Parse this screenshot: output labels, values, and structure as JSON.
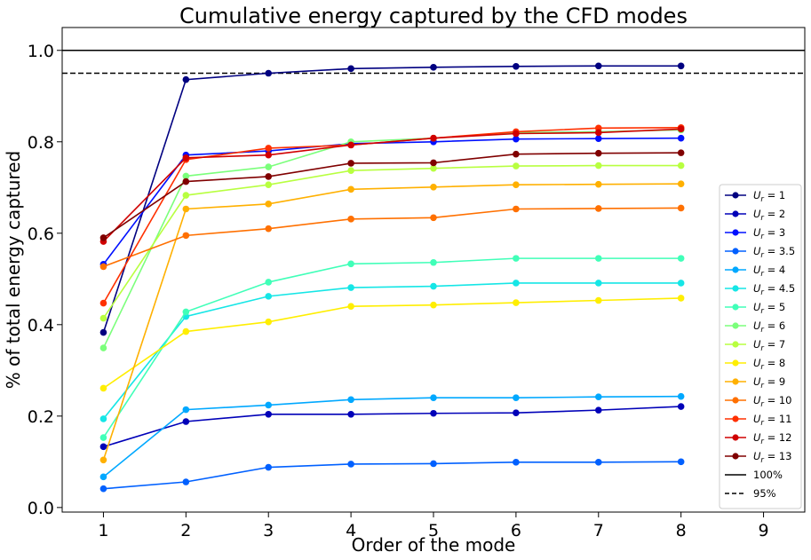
{
  "chart_data": {
    "type": "line",
    "title": "Cumulative energy captured by the CFD modes",
    "xlabel": "Order of the mode",
    "ylabel": "% of total energy captured",
    "xlim": [
      0.5,
      9.5
    ],
    "ylim": [
      -0.01,
      1.05
    ],
    "x": [
      1,
      2,
      3,
      4,
      5,
      6,
      7,
      8
    ],
    "xticks": [
      "1",
      "2",
      "3",
      "4",
      "5",
      "6",
      "7",
      "8",
      "9"
    ],
    "yticks": [
      "0.0",
      "0.2",
      "0.4",
      "0.6",
      "0.8",
      "1.0"
    ],
    "grid": false,
    "legend_position": "lower-right",
    "series": [
      {
        "name": "1",
        "color": "#000080",
        "values": [
          0.383,
          0.936,
          0.95,
          0.96,
          0.963,
          0.965,
          0.966,
          0.966
        ]
      },
      {
        "name": "2",
        "color": "#0000b8",
        "values": [
          0.133,
          0.188,
          0.204,
          0.204,
          0.206,
          0.207,
          0.213,
          0.221
        ]
      },
      {
        "name": "3",
        "color": "#0010ff",
        "values": [
          0.532,
          0.771,
          0.78,
          0.796,
          0.8,
          0.806,
          0.807,
          0.808
        ]
      },
      {
        "name": "3.5",
        "color": "#0060ff",
        "values": [
          0.041,
          0.056,
          0.088,
          0.095,
          0.096,
          0.099,
          0.099,
          0.1
        ]
      },
      {
        "name": "4",
        "color": "#00a8ff",
        "values": [
          0.067,
          0.214,
          0.224,
          0.236,
          0.24,
          0.24,
          0.242,
          0.243
        ]
      },
      {
        "name": "4.5",
        "color": "#15e6e6",
        "values": [
          0.194,
          0.418,
          0.462,
          0.481,
          0.484,
          0.491,
          0.491,
          0.491
        ]
      },
      {
        "name": "5",
        "color": "#40ffb8",
        "values": [
          0.153,
          0.428,
          0.493,
          0.533,
          0.536,
          0.545,
          0.545,
          0.545
        ]
      },
      {
        "name": "6",
        "color": "#7bff7b",
        "values": [
          0.349,
          0.725,
          0.745,
          0.8,
          0.808,
          0.82,
          0.822,
          0.826
        ]
      },
      {
        "name": "7",
        "color": "#b8ff40",
        "values": [
          0.414,
          0.683,
          0.706,
          0.737,
          0.742,
          0.747,
          0.748,
          0.748
        ]
      },
      {
        "name": "8",
        "color": "#ffee00",
        "values": [
          0.261,
          0.385,
          0.406,
          0.44,
          0.443,
          0.448,
          0.453,
          0.458
        ]
      },
      {
        "name": "9",
        "color": "#ffb000",
        "values": [
          0.104,
          0.653,
          0.664,
          0.696,
          0.701,
          0.706,
          0.707,
          0.708
        ]
      },
      {
        "name": "10",
        "color": "#ff7000",
        "values": [
          0.527,
          0.595,
          0.61,
          0.631,
          0.634,
          0.653,
          0.654,
          0.655
        ]
      },
      {
        "name": "11",
        "color": "#ff3000",
        "values": [
          0.447,
          0.761,
          0.786,
          0.793,
          0.808,
          0.822,
          0.83,
          0.831
        ]
      },
      {
        "name": "12",
        "color": "#d00000",
        "values": [
          0.582,
          0.765,
          0.771,
          0.793,
          0.808,
          0.818,
          0.82,
          0.828
        ]
      },
      {
        "name": "13",
        "color": "#800000",
        "values": [
          0.59,
          0.713,
          0.724,
          0.753,
          0.754,
          0.773,
          0.775,
          0.776
        ]
      }
    ],
    "reference_lines": [
      {
        "name": "100%",
        "y": 1.0,
        "color": "#000000",
        "style": "solid"
      },
      {
        "name": "95%",
        "y": 0.95,
        "color": "#000000",
        "style": "dashed"
      }
    ],
    "legend_prefix": "U_r = "
  }
}
